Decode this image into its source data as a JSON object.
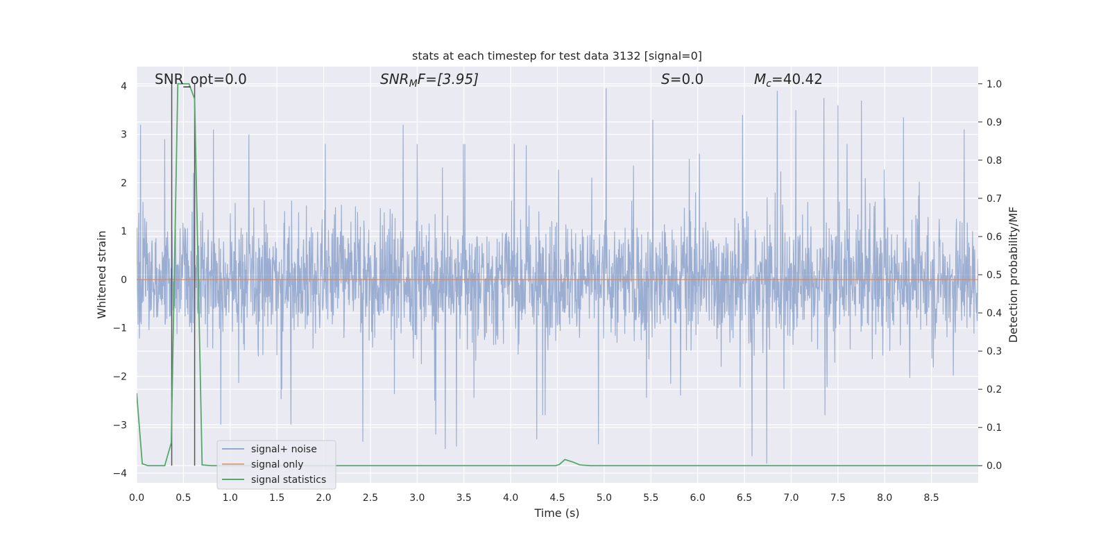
{
  "chart_data": {
    "type": "line",
    "title": "stats at each timestep for test data 3132 [signal=0]",
    "xlabel": "Time (s)",
    "ylabel": "Whitened strain",
    "ylabel_right": "Detection probability/MF",
    "xlim": [
      0.0,
      9.0
    ],
    "ylim": [
      -4.2,
      4.4
    ],
    "ylim_right": [
      -0.045,
      1.045
    ],
    "x_ticks": [
      "0.0",
      "0.5",
      "1.0",
      "1.5",
      "2.0",
      "2.5",
      "3.0",
      "3.5",
      "4.0",
      "4.5",
      "5.0",
      "5.5",
      "6.0",
      "6.5",
      "7.0",
      "7.5",
      "8.0",
      "8.5"
    ],
    "y_ticks": [
      "4",
      "3",
      "2",
      "1",
      "0",
      "−1",
      "−2",
      "−3",
      "−4"
    ],
    "y_ticks_right": [
      "1.0",
      "0.9",
      "0.8",
      "0.7",
      "0.6",
      "0.5",
      "0.4",
      "0.3",
      "0.2",
      "0.1",
      "0.0"
    ],
    "grid": true,
    "legend_position": "lower-left",
    "annotations": {
      "snr_opt": "SNR_opt=0.0",
      "snr_mf_main": "SNR",
      "snr_mf_sub": "M",
      "snr_mf_rest": "F=[3.95]",
      "s_main": "S",
      "s_rest": "=0.0",
      "mc_main": "M",
      "mc_sub": "c",
      "mc_rest": "=40.42"
    },
    "vertical_markers_x": [
      0.375,
      0.62
    ],
    "series": [
      {
        "name": "signal+ noise",
        "color": "#4c72b0",
        "axis": "left",
        "description": "whitened strain noise trace sampled over 0–9 s, approx range -3.8 to 3.95",
        "peaks": [
          {
            "x": 0.04,
            "y": 3.2
          },
          {
            "x": 0.3,
            "y": 2.9
          },
          {
            "x": 0.82,
            "y": 3.1
          },
          {
            "x": 0.9,
            "y": -3.0
          },
          {
            "x": 1.2,
            "y": 3.0
          },
          {
            "x": 1.65,
            "y": -3.0
          },
          {
            "x": 2.42,
            "y": -3.35
          },
          {
            "x": 2.85,
            "y": 3.2
          },
          {
            "x": 3.2,
            "y": -3.2
          },
          {
            "x": 3.3,
            "y": -3.5
          },
          {
            "x": 3.42,
            "y": -3.45
          },
          {
            "x": 4.28,
            "y": -3.3
          },
          {
            "x": 4.94,
            "y": -3.4
          },
          {
            "x": 5.02,
            "y": 3.95
          },
          {
            "x": 5.52,
            "y": 3.3
          },
          {
            "x": 6.02,
            "y": 2.6
          },
          {
            "x": 6.48,
            "y": 3.4
          },
          {
            "x": 6.58,
            "y": -3.65
          },
          {
            "x": 6.74,
            "y": -3.8
          },
          {
            "x": 6.85,
            "y": 3.9
          },
          {
            "x": 7.05,
            "y": 3.5
          },
          {
            "x": 7.35,
            "y": 3.75
          },
          {
            "x": 7.5,
            "y": 3.6
          },
          {
            "x": 7.75,
            "y": 3.7
          },
          {
            "x": 8.2,
            "y": 3.35
          },
          {
            "x": 8.85,
            "y": 3.1
          }
        ]
      },
      {
        "name": "signal only",
        "color": "#dd8452",
        "axis": "left",
        "x": [
          0.0,
          9.0
        ],
        "y": [
          0.0,
          0.0
        ]
      },
      {
        "name": "signal statistics",
        "color": "#55a868",
        "axis": "right",
        "x": [
          0.0,
          0.06,
          0.12,
          0.2,
          0.3,
          0.37,
          0.44,
          0.5,
          0.56,
          0.62,
          0.7,
          0.8,
          1.0,
          2.0,
          3.0,
          4.0,
          4.48,
          4.52,
          4.58,
          4.66,
          4.74,
          4.85,
          5.0,
          6.0,
          7.0,
          8.0,
          9.0
        ],
        "y": [
          0.19,
          0.005,
          0.0,
          0.0,
          0.0,
          0.06,
          1.0,
          1.0,
          1.0,
          0.96,
          0.002,
          0.0,
          0.0,
          0.0,
          0.0,
          0.0,
          0.0,
          0.003,
          0.016,
          0.01,
          0.002,
          0.0,
          0.0,
          0.0,
          0.0,
          0.0,
          0.0
        ]
      }
    ]
  }
}
